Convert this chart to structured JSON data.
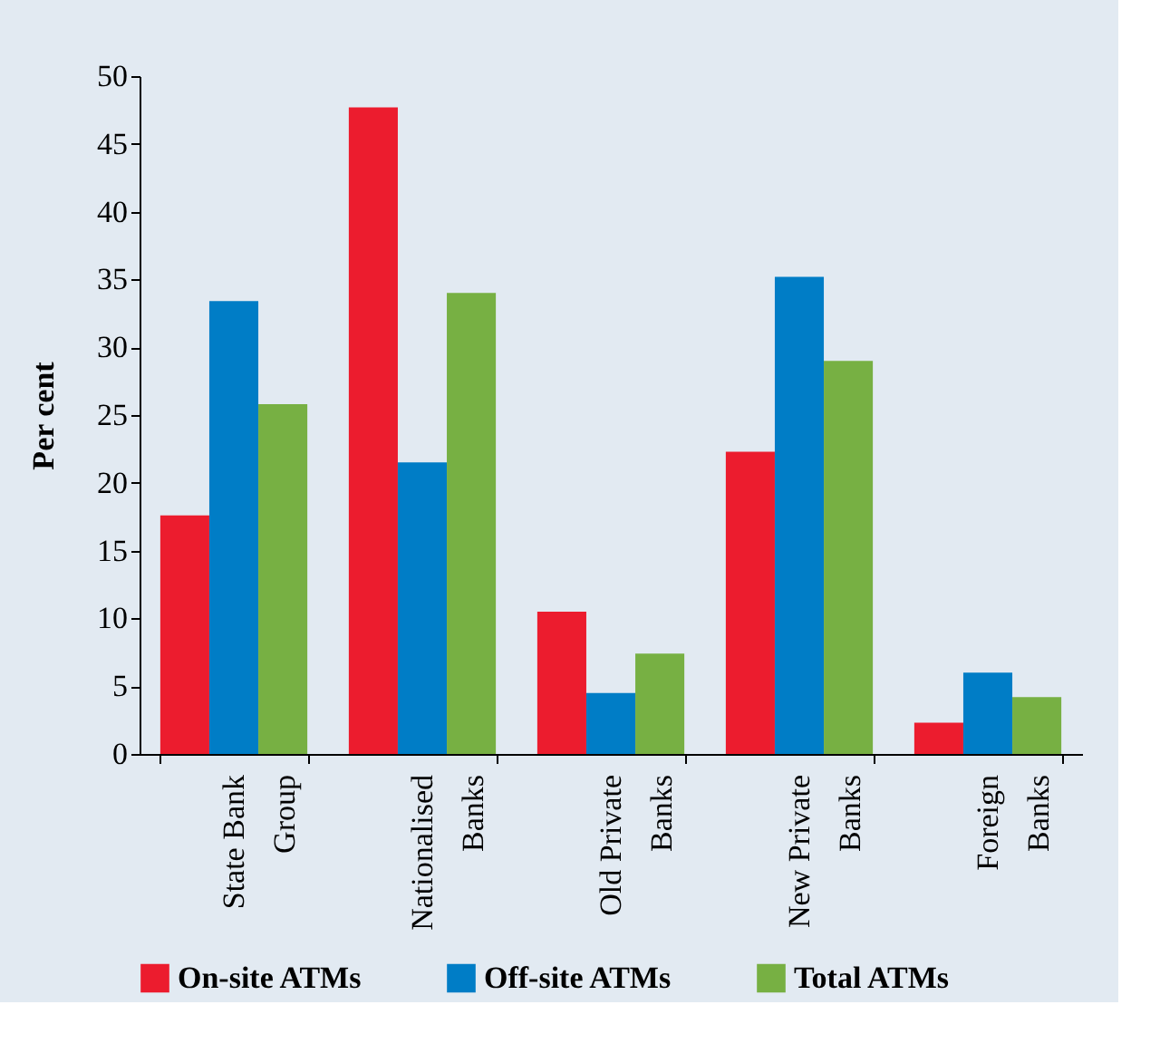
{
  "chart_data": {
    "type": "bar",
    "ylabel": "Per cent",
    "categories": [
      "State Bank Group",
      "Nationalised Banks",
      "Old Private Banks",
      "New Private Banks",
      "Foreign Banks"
    ],
    "series": [
      {
        "name": "On-site ATMs",
        "color": "#ec1c2e",
        "values": [
          17.6,
          47.7,
          10.5,
          22.3,
          2.3
        ]
      },
      {
        "name": "Off-site ATMs",
        "color": "#007dc6",
        "values": [
          33.4,
          21.5,
          4.5,
          35.2,
          6.0
        ]
      },
      {
        "name": "Total ATMs",
        "color": "#77b043",
        "values": [
          25.8,
          34.0,
          7.4,
          29.0,
          4.2
        ]
      }
    ],
    "ylim": [
      0,
      50
    ],
    "yticks": [
      0,
      5,
      10,
      15,
      20,
      25,
      30,
      35,
      40,
      45,
      50
    ],
    "grid": false,
    "legend": "bottom"
  }
}
